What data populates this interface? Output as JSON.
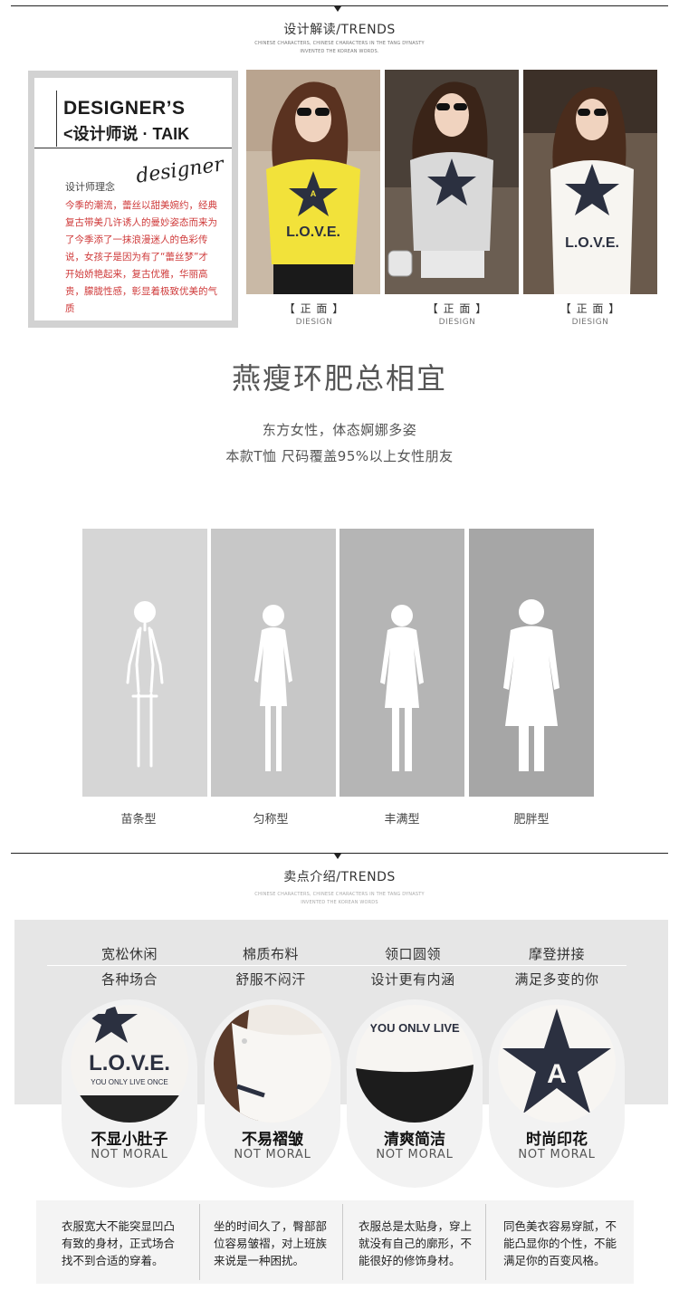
{
  "section1": {
    "title": "设计解读/TRENDS",
    "sub1": "CHINESE CHARACTERS, CHINESE CHARACTERS IN THE TANG DYNASTY",
    "sub2": "INVENTED THE KOREAN WORDS."
  },
  "designer": {
    "heading": "DESIGNER’S",
    "subheading": "<设计师说 · TAIK",
    "label": "设计师理念",
    "script": "designer",
    "body": "今季的潮流，蕾丝以甜美婉约，经典复古带美几许诱人的曼妙姿态而来为了今季添了一抹浪漫迷人的色彩传说，女孩子是因为有了“蕾丝梦”才开始娇艳起来，复古优雅，华丽高贵，朦胧性感，彰显着极致优美的气质"
  },
  "photos": [
    {
      "caption": "【 正 面 】",
      "caption_en": "DIESIGN",
      "shirt_color": "#f2e23a"
    },
    {
      "caption": "【 正 面 】",
      "caption_en": "DIESIGN",
      "shirt_color": "#d9d9d9"
    },
    {
      "caption": "【 正 面 】",
      "caption_en": "DIESIGN",
      "shirt_color": "#f7f5f1"
    }
  ],
  "headline": "燕瘦环肥总相宜",
  "subline1": "东方女性，体态婀娜多姿",
  "subline2": "本款T恤 尺码覆盖95%以上女性朋友",
  "body_types": [
    {
      "label": "苗条型",
      "bg": "#d6d6d6"
    },
    {
      "label": "匀称型",
      "bg": "#c7c7c7"
    },
    {
      "label": "丰满型",
      "bg": "#b5b5b5"
    },
    {
      "label": "肥胖型",
      "bg": "#a6a6a6"
    }
  ],
  "section2": {
    "title": "卖点介绍/TRENDS",
    "sub1": "CHINESE CHARACTERS, CHINESE CHARACTERS IN THE TANG DYNASTY",
    "sub2": "INVENTED THE KOREAN WORDS"
  },
  "features": [
    {
      "t1": "宽松休闲",
      "t2": "各种场合",
      "name": "不显小肚子",
      "en": "NOT MORAL",
      "desc": "衣服宽大不能突显凹凸有致的身材，正式场合找不到合适的穿着。"
    },
    {
      "t1": "棉质布料",
      "t2": "舒服不闷汗",
      "name": "不易褶皱",
      "en": "NOT MORAL",
      "desc": "坐的时间久了，臀部部位容易皱褶，对上班族来说是一种困扰。"
    },
    {
      "t1": "领口圆领",
      "t2": "设计更有内涵",
      "name": "清爽简洁",
      "en": "NOT MORAL",
      "desc": "衣服总是太贴身，穿上就没有自己的廓形，不能很好的修饰身材。"
    },
    {
      "t1": "摩登拼接",
      "t2": "满足多变的你",
      "name": "时尚印花",
      "en": "NOT MORAL",
      "desc": "同色美衣容易穿腻，不能凸显你的个性，不能满足你的百变风格。"
    }
  ],
  "prints": {
    "love_text": "L.O.V.E.",
    "star_letter": "A",
    "tagline": "YOU ONLY LIVE ONCE",
    "crop_text": "YOU ONLV LIVE"
  },
  "colors": {
    "accent_red": "#cf3a3a",
    "ink": "#1c1c1c",
    "star": "#2b3040"
  }
}
